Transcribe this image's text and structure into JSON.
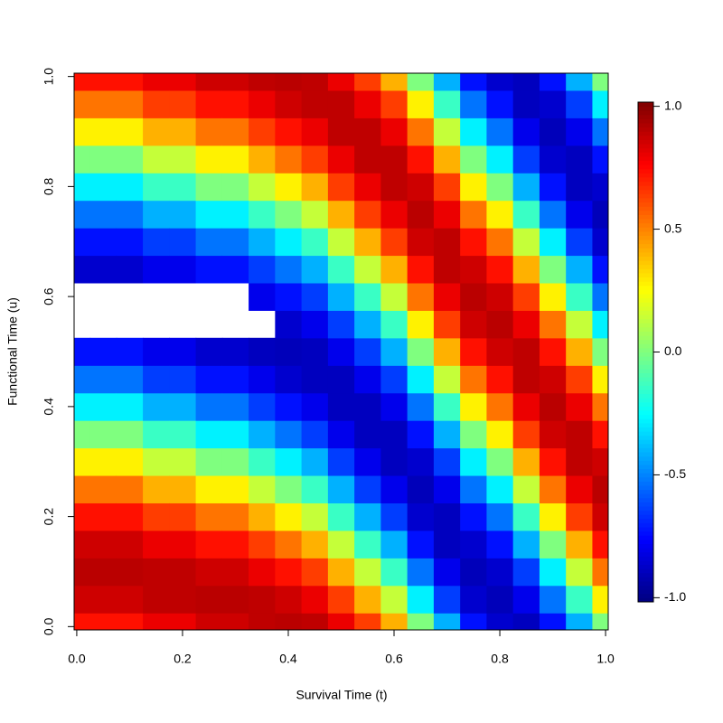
{
  "chart_data": {
    "type": "heatmap",
    "xlabel": "Survival Time (t)",
    "ylabel": "Functional Time (u)",
    "x": [
      0,
      0.05,
      0.1,
      0.15,
      0.2,
      0.25,
      0.3,
      0.35,
      0.4,
      0.45,
      0.5,
      0.55,
      0.6,
      0.65,
      0.7,
      0.75,
      0.8,
      0.85,
      0.9,
      0.95,
      1
    ],
    "y": [
      0,
      0.05,
      0.1,
      0.15,
      0.2,
      0.25,
      0.3,
      0.35,
      0.4,
      0.45,
      0.5,
      0.55,
      0.6,
      0.65,
      0.7,
      0.75,
      0.8,
      0.85,
      0.9,
      0.95,
      1
    ],
    "values": [
      [
        0.73,
        0.86,
        0.9,
        0.86,
        0.73,
        0.53,
        0.28,
        0,
        -0.28,
        -0.53,
        -0.73,
        null,
        null,
        -0.86,
        -0.73,
        -0.53,
        -0.28,
        0,
        0.28,
        0.53,
        0.73
      ],
      [
        0.73,
        0.86,
        0.9,
        0.86,
        0.73,
        0.53,
        0.28,
        0,
        -0.28,
        -0.53,
        -0.73,
        null,
        null,
        -0.86,
        -0.73,
        -0.53,
        -0.28,
        0,
        0.28,
        0.53,
        0.73
      ],
      [
        0.73,
        0.86,
        0.9,
        0.86,
        0.73,
        0.53,
        0.28,
        0,
        -0.28,
        -0.53,
        -0.73,
        null,
        null,
        -0.86,
        -0.73,
        -0.53,
        -0.28,
        0,
        0.28,
        0.53,
        0.73
      ],
      [
        0.8,
        0.89,
        0.89,
        0.8,
        0.64,
        0.41,
        0.14,
        -0.14,
        -0.41,
        -0.64,
        -0.8,
        null,
        null,
        -0.8,
        -0.64,
        -0.41,
        -0.14,
        0.14,
        0.41,
        0.64,
        0.8
      ],
      [
        0.8,
        0.89,
        0.89,
        0.8,
        0.64,
        0.41,
        0.14,
        -0.14,
        -0.41,
        -0.64,
        -0.8,
        null,
        null,
        -0.8,
        -0.64,
        -0.41,
        -0.14,
        0.14,
        0.41,
        0.64,
        0.8
      ],
      [
        0.86,
        0.9,
        0.86,
        0.73,
        0.53,
        0.28,
        0,
        -0.28,
        -0.53,
        -0.73,
        -0.86,
        null,
        null,
        -0.73,
        -0.53,
        -0.28,
        0,
        0.28,
        0.53,
        0.73,
        0.86
      ],
      [
        0.86,
        0.9,
        0.86,
        0.73,
        0.53,
        0.28,
        0,
        -0.28,
        -0.53,
        -0.73,
        -0.86,
        null,
        null,
        -0.73,
        -0.53,
        -0.28,
        0,
        0.28,
        0.53,
        0.73,
        0.86
      ],
      [
        0.89,
        0.89,
        0.8,
        0.64,
        0.41,
        0.14,
        -0.14,
        -0.41,
        -0.64,
        -0.8,
        -0.89,
        null,
        -0.8,
        -0.64,
        -0.41,
        -0.14,
        0.14,
        0.41,
        0.64,
        0.8,
        0.89
      ],
      [
        0.9,
        0.86,
        0.73,
        0.53,
        0.28,
        0,
        -0.28,
        -0.53,
        -0.73,
        -0.86,
        -0.9,
        -0.86,
        -0.73,
        -0.53,
        -0.28,
        0,
        0.28,
        0.53,
        0.73,
        0.86,
        0.9
      ],
      [
        0.89,
        0.8,
        0.64,
        0.41,
        0.14,
        -0.14,
        -0.41,
        -0.64,
        -0.8,
        -0.89,
        -0.89,
        -0.8,
        -0.64,
        -0.41,
        -0.14,
        0.14,
        0.41,
        0.64,
        0.8,
        0.89,
        0.89
      ],
      [
        0.8,
        0.64,
        0.41,
        0.14,
        -0.14,
        -0.41,
        -0.64,
        -0.8,
        -0.89,
        -0.89,
        -0.8,
        -0.64,
        -0.41,
        -0.14,
        0.14,
        0.41,
        0.64,
        0.8,
        0.89,
        0.89,
        0.8
      ],
      [
        0.64,
        0.41,
        0.14,
        -0.14,
        -0.41,
        -0.64,
        -0.8,
        -0.89,
        -0.89,
        -0.8,
        -0.64,
        -0.41,
        -0.14,
        0.14,
        0.41,
        0.64,
        0.8,
        0.89,
        0.89,
        0.8,
        0.64
      ],
      [
        0.41,
        0.14,
        -0.14,
        -0.41,
        -0.64,
        -0.8,
        -0.89,
        -0.89,
        -0.8,
        -0.64,
        -0.41,
        -0.14,
        0.14,
        0.41,
        0.64,
        0.8,
        0.89,
        0.89,
        0.8,
        0.64,
        0.41
      ],
      [
        0,
        -0.28,
        -0.53,
        -0.73,
        -0.86,
        -0.9,
        -0.86,
        -0.73,
        -0.53,
        -0.28,
        0,
        0.28,
        0.53,
        0.73,
        0.86,
        0.9,
        0.86,
        0.73,
        0.53,
        0.28,
        0
      ],
      [
        -0.41,
        -0.64,
        -0.8,
        -0.89,
        -0.89,
        -0.8,
        -0.64,
        -0.41,
        -0.14,
        0.14,
        0.41,
        0.64,
        0.8,
        0.89,
        0.89,
        0.8,
        0.64,
        0.41,
        0.14,
        -0.14,
        -0.41
      ],
      [
        -0.73,
        -0.86,
        -0.9,
        -0.86,
        -0.73,
        -0.53,
        -0.28,
        0,
        0.28,
        0.53,
        0.73,
        0.86,
        0.9,
        0.86,
        0.73,
        0.53,
        0.28,
        0,
        -0.28,
        -0.53,
        -0.73
      ],
      [
        -0.86,
        -0.9,
        -0.86,
        -0.73,
        -0.53,
        -0.28,
        0,
        0.28,
        0.53,
        0.73,
        0.86,
        0.9,
        0.86,
        0.73,
        0.53,
        0.28,
        0,
        -0.28,
        -0.53,
        -0.73,
        -0.86
      ],
      [
        -0.89,
        -0.8,
        -0.64,
        -0.41,
        -0.14,
        0.14,
        0.41,
        0.64,
        0.8,
        0.89,
        0.89,
        0.8,
        0.64,
        0.41,
        0.14,
        -0.14,
        -0.41,
        -0.64,
        -0.8,
        -0.89,
        -0.89
      ],
      [
        -0.73,
        -0.53,
        -0.28,
        0,
        0.28,
        0.53,
        0.73,
        0.86,
        0.9,
        0.86,
        0.73,
        0.53,
        0.28,
        0,
        -0.28,
        -0.53,
        -0.73,
        -0.86,
        -0.9,
        -0.86,
        -0.73
      ],
      [
        -0.41,
        -0.14,
        0.14,
        0.41,
        0.64,
        0.8,
        0.89,
        0.89,
        0.8,
        0.64,
        0.41,
        0.14,
        -0.14,
        -0.41,
        -0.64,
        -0.8,
        -0.89,
        -0.89,
        -0.8,
        -0.64,
        -0.41
      ],
      [
        0,
        0.28,
        0.53,
        0.73,
        0.86,
        0.9,
        0.86,
        0.73,
        0.53,
        0.28,
        0,
        -0.28,
        -0.53,
        -0.73,
        -0.86,
        -0.9,
        -0.86,
        -0.73,
        -0.53,
        -0.28,
        0
      ]
    ],
    "xlim": [
      -0.005,
      1.005
    ],
    "ylim": [
      -0.006,
      1.006
    ],
    "xticks": [
      {
        "value": 0,
        "label": "0.0"
      },
      {
        "value": 0.2,
        "label": "0.2"
      },
      {
        "value": 0.4,
        "label": "0.4"
      },
      {
        "value": 0.6,
        "label": "0.6"
      },
      {
        "value": 0.8,
        "label": "0.8"
      },
      {
        "value": 1,
        "label": "1.0"
      }
    ],
    "yticks": [
      {
        "value": 0,
        "label": "0.0"
      },
      {
        "value": 0.2,
        "label": "0.2"
      },
      {
        "value": 0.4,
        "label": "0.4"
      },
      {
        "value": 0.6,
        "label": "0.6"
      },
      {
        "value": 0.8,
        "label": "0.8"
      },
      {
        "value": 1,
        "label": "1.0"
      }
    ],
    "zlim": [
      -1.017,
      1.017
    ],
    "zticks": [
      {
        "value": -1,
        "label": "-1.0"
      },
      {
        "value": -0.5,
        "label": "-0.5"
      },
      {
        "value": 0,
        "label": "0.0"
      },
      {
        "value": 0.5,
        "label": "0.5"
      },
      {
        "value": 1,
        "label": "1.0"
      }
    ],
    "colormap": [
      "#00007f",
      "#0000ff",
      "#007fff",
      "#00ffff",
      "#7fff7f",
      "#ffff00",
      "#ff7f00",
      "#ff0000",
      "#7f0000"
    ]
  }
}
